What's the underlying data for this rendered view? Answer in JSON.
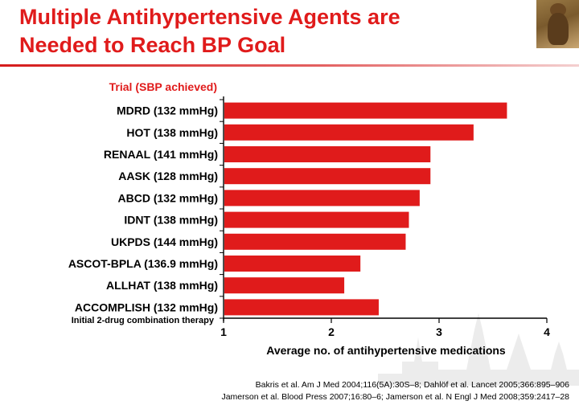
{
  "slide": {
    "title_line1": "Multiple Antihypertensive Agents are",
    "title_line2": "Needed to Reach BP Goal",
    "references": [
      "Bakris et al. Am J Med 2004;116(5A):30S–8; Dahlöf et al. Lancet 2005;366:895–906",
      "Jamerson et al. Blood Press 2007;16:80–6; Jamerson et al. N Engl J Med 2008;359:2417–28"
    ]
  },
  "chart_data": {
    "type": "bar",
    "orientation": "horizontal",
    "category_axis_header": "Trial (SBP achieved)",
    "categories": [
      "MDRD (132 mmHg)",
      "HOT (138 mmHg)",
      "RENAAL (141 mmHg)",
      "AASK (128 mmHg)",
      "ABCD (132 mmHg)",
      "IDNT (138 mmHg)",
      "UKPDS (144 mmHg)",
      "ASCOT-BPLA (136.9 mmHg)",
      "ALLHAT (138 mmHg)",
      "ACCOMPLISH (132 mmHg)"
    ],
    "values": [
      3.63,
      3.32,
      2.92,
      2.92,
      2.82,
      2.72,
      2.69,
      2.27,
      2.12,
      2.44
    ],
    "annotation": "Initial 2-drug combination therapy",
    "xlabel": "Average no. of antihypertensive medications",
    "xlim": [
      1,
      4
    ],
    "xticks": [
      "1",
      "2",
      "3",
      "4"
    ],
    "grid": false,
    "bar_color": "#e01b1b"
  }
}
